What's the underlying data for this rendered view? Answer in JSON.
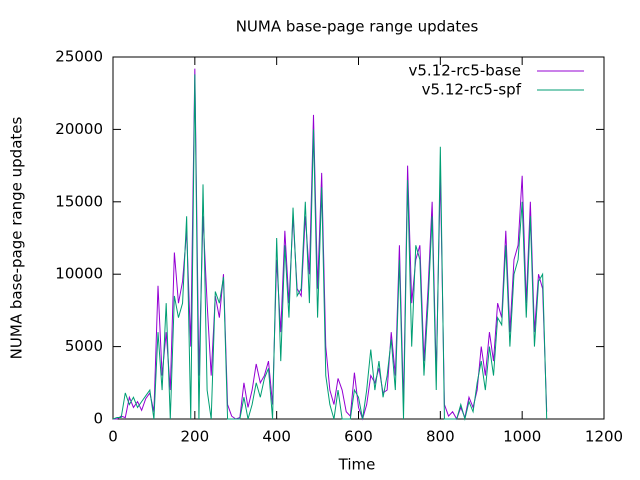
{
  "chart_data": {
    "type": "line",
    "title": "NUMA base-page range updates",
    "x_label": "Time",
    "y_label": "NUMA base-page range updates",
    "x": [
      0,
      10,
      20,
      30,
      40,
      50,
      60,
      70,
      80,
      90,
      100,
      110,
      120,
      130,
      140,
      150,
      160,
      170,
      180,
      190,
      200,
      210,
      220,
      230,
      240,
      250,
      260,
      270,
      280,
      290,
      300,
      310,
      320,
      330,
      340,
      350,
      360,
      370,
      380,
      390,
      400,
      410,
      420,
      430,
      440,
      450,
      460,
      470,
      480,
      490,
      500,
      510,
      520,
      530,
      540,
      550,
      560,
      570,
      580,
      590,
      600,
      610,
      620,
      630,
      640,
      650,
      660,
      670,
      680,
      690,
      700,
      710,
      720,
      730,
      740,
      750,
      760,
      770,
      780,
      790,
      800,
      810,
      820,
      830,
      840,
      850,
      860,
      870,
      880,
      890,
      900,
      910,
      920,
      930,
      940,
      950,
      960,
      970,
      980,
      990,
      1000,
      1010,
      1020,
      1030,
      1040,
      1050,
      1060
    ],
    "series": [
      {
        "name": "v5.12-rc5-base",
        "color": "#9400d3",
        "values": [
          0,
          0,
          200,
          100,
          1500,
          800,
          1200,
          600,
          1400,
          1800,
          500,
          9200,
          3000,
          6000,
          2000,
          11500,
          8000,
          9500,
          13000,
          5000,
          24200,
          3000,
          14000,
          8000,
          3000,
          8500,
          7000,
          10000,
          1000,
          200,
          0,
          100,
          2500,
          800,
          2000,
          3800,
          2500,
          3000,
          4000,
          1000,
          11000,
          6000,
          13000,
          8000,
          14000,
          9000,
          8500,
          14000,
          10000,
          21000,
          9000,
          17000,
          5000,
          2000,
          1000,
          2800,
          2000,
          500,
          200,
          3200,
          800,
          0,
          1000,
          3000,
          2500,
          3500,
          1800,
          2000,
          6000,
          3000,
          12000,
          1000,
          17500,
          8000,
          11000,
          12000,
          4000,
          9000,
          15000,
          3000,
          17000,
          1000,
          200,
          500,
          0,
          800,
          100,
          1500,
          800,
          2000,
          5000,
          3000,
          6000,
          4000,
          8000,
          7000,
          13000,
          6000,
          11000,
          12000,
          16800,
          8000,
          15000,
          6000,
          10000,
          9000,
          500
        ]
      },
      {
        "name": "v5.12-rc5-spf",
        "color": "#009e73",
        "values": [
          0,
          100,
          100,
          1800,
          1000,
          1500,
          800,
          1200,
          1600,
          2000,
          0,
          6000,
          2000,
          8000,
          0,
          8500,
          7000,
          8000,
          14000,
          0,
          23800,
          0,
          16200,
          2000,
          0,
          8800,
          8000,
          9800,
          0,
          0,
          0,
          0,
          1500,
          0,
          1000,
          2500,
          1500,
          2800,
          3500,
          0,
          12500,
          4000,
          12000,
          7000,
          14600,
          8500,
          9000,
          15000,
          8000,
          20000,
          7000,
          16000,
          3000,
          1000,
          0,
          2000,
          0,
          0,
          0,
          2000,
          1500,
          0,
          2000,
          4800,
          2000,
          4000,
          1500,
          3000,
          5500,
          2000,
          11000,
          0,
          16500,
          5000,
          12000,
          11000,
          3000,
          8000,
          14000,
          2000,
          18800,
          0,
          0,
          0,
          0,
          1000,
          0,
          1200,
          500,
          2500,
          4000,
          2000,
          5000,
          3000,
          7000,
          6500,
          12000,
          5000,
          10000,
          11000,
          15000,
          7000,
          14000,
          5000,
          9500,
          10000,
          0
        ]
      }
    ],
    "xlim": [
      0,
      1200
    ],
    "xticks": [
      0,
      200,
      400,
      600,
      800,
      1000,
      1200
    ],
    "ylim": [
      0,
      25000
    ],
    "yticks": [
      0,
      5000,
      10000,
      15000,
      20000,
      25000
    ],
    "legend": "top-right"
  }
}
